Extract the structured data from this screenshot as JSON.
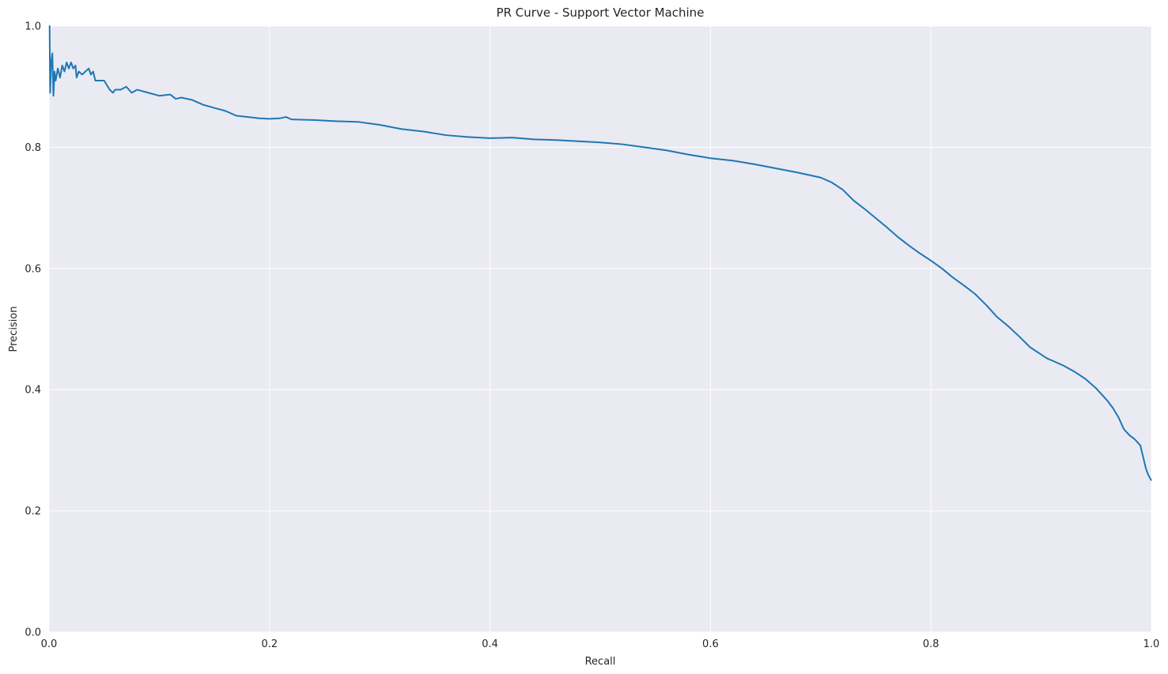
{
  "chart_data": {
    "type": "line",
    "title": "PR Curve - Support Vector Machine",
    "xlabel": "Recall",
    "ylabel": "Precision",
    "xlim": [
      0.0,
      1.0
    ],
    "ylim": [
      0.0,
      1.0
    ],
    "xticks": [
      "0.0",
      "0.2",
      "0.4",
      "0.6",
      "0.8",
      "1.0"
    ],
    "yticks": [
      "0.0",
      "0.2",
      "0.4",
      "0.6",
      "0.8",
      "1.0"
    ],
    "grid": true,
    "background": "#eaeaf2",
    "series": [
      {
        "color": "#1f77b4",
        "x": [
          0.0,
          0.0005,
          0.001,
          0.002,
          0.003,
          0.004,
          0.005,
          0.006,
          0.008,
          0.01,
          0.012,
          0.014,
          0.016,
          0.018,
          0.02,
          0.022,
          0.024,
          0.025,
          0.027,
          0.03,
          0.033,
          0.036,
          0.038,
          0.04,
          0.042,
          0.045,
          0.05,
          0.055,
          0.058,
          0.06,
          0.065,
          0.07,
          0.075,
          0.08,
          0.09,
          0.1,
          0.11,
          0.115,
          0.12,
          0.13,
          0.14,
          0.15,
          0.16,
          0.17,
          0.18,
          0.19,
          0.2,
          0.21,
          0.215,
          0.22,
          0.24,
          0.26,
          0.28,
          0.3,
          0.32,
          0.34,
          0.36,
          0.38,
          0.4,
          0.42,
          0.44,
          0.46,
          0.48,
          0.5,
          0.52,
          0.54,
          0.56,
          0.58,
          0.6,
          0.62,
          0.64,
          0.66,
          0.68,
          0.7,
          0.71,
          0.72,
          0.73,
          0.74,
          0.75,
          0.76,
          0.77,
          0.78,
          0.79,
          0.8,
          0.81,
          0.82,
          0.83,
          0.84,
          0.85,
          0.86,
          0.87,
          0.88,
          0.89,
          0.9,
          0.905,
          0.91,
          0.92,
          0.93,
          0.94,
          0.95,
          0.96,
          0.965,
          0.97,
          0.975,
          0.98,
          0.985,
          0.99,
          0.995,
          0.997,
          1.0
        ],
        "y": [
          1.0,
          1.0,
          0.89,
          0.94,
          0.955,
          0.885,
          0.925,
          0.91,
          0.93,
          0.915,
          0.935,
          0.925,
          0.94,
          0.93,
          0.94,
          0.93,
          0.935,
          0.915,
          0.925,
          0.92,
          0.925,
          0.93,
          0.92,
          0.925,
          0.91,
          0.91,
          0.91,
          0.895,
          0.89,
          0.895,
          0.895,
          0.9,
          0.89,
          0.895,
          0.89,
          0.885,
          0.887,
          0.88,
          0.882,
          0.878,
          0.87,
          0.865,
          0.86,
          0.852,
          0.85,
          0.848,
          0.847,
          0.848,
          0.85,
          0.846,
          0.845,
          0.843,
          0.842,
          0.837,
          0.83,
          0.826,
          0.82,
          0.817,
          0.815,
          0.816,
          0.813,
          0.812,
          0.81,
          0.808,
          0.805,
          0.8,
          0.795,
          0.788,
          0.782,
          0.778,
          0.772,
          0.765,
          0.758,
          0.75,
          0.742,
          0.73,
          0.712,
          0.698,
          0.683,
          0.668,
          0.652,
          0.638,
          0.625,
          0.613,
          0.6,
          0.585,
          0.572,
          0.558,
          0.54,
          0.52,
          0.505,
          0.488,
          0.47,
          0.458,
          0.452,
          0.448,
          0.44,
          0.43,
          0.418,
          0.402,
          0.382,
          0.37,
          0.355,
          0.335,
          0.325,
          0.318,
          0.308,
          0.27,
          0.26,
          0.25
        ]
      }
    ]
  }
}
